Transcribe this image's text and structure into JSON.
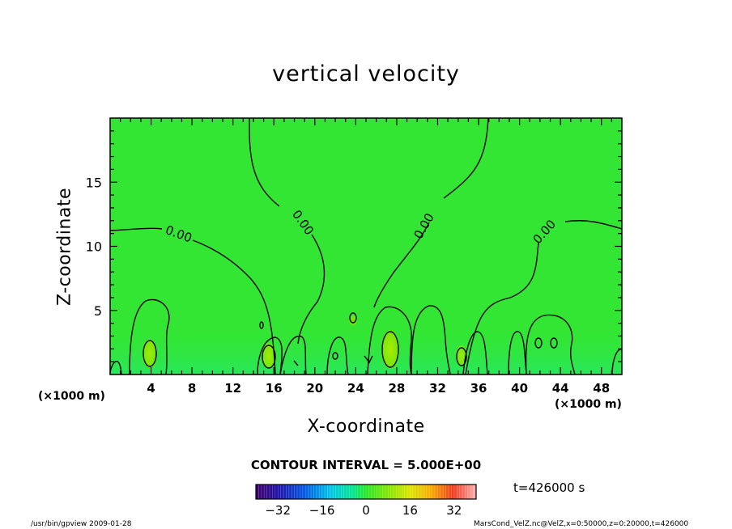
{
  "chart_data": {
    "type": "heatmap",
    "title": "vertical velocity",
    "xlabel": "X-coordinate",
    "ylabel": "Z-coordinate",
    "x_unit": "(×1000 m)",
    "y_unit": "(×1000 m)",
    "xlim": [
      0,
      50
    ],
    "ylim": [
      0,
      20
    ],
    "xticks": [
      4,
      8,
      12,
      16,
      20,
      24,
      28,
      32,
      36,
      40,
      44,
      48
    ],
    "yticks": [
      5,
      10,
      15
    ],
    "colormap": "rainbow",
    "colorbar": {
      "ticks": [
        -32,
        -16,
        0,
        16,
        32
      ],
      "range": [
        -40,
        40
      ],
      "low_color": "#3b006b",
      "mid_color": "#00e000",
      "high_color": "#ffa0a0"
    },
    "field_color": "#33e633",
    "contour_interval_text": "CONTOUR INTERVAL = 5.000E+00",
    "contour_labels": [
      "0.00",
      "0.00",
      "0.00",
      "0.00"
    ],
    "time_text": "t=426000 s",
    "footer_left": "/usr/bin/gpview   2009-01-28",
    "footer_right": "MarsCond_VelZ.nc@VelZ,x=0:50000,z=0:20000,t=426000"
  }
}
